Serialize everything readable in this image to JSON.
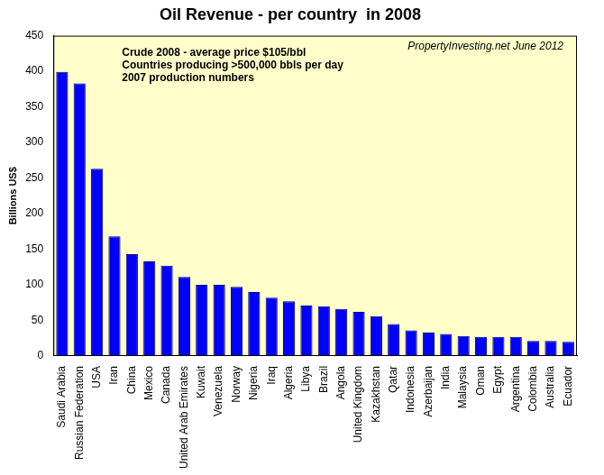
{
  "chart_data": {
    "type": "bar",
    "title": "Oil Revenue - per country  in 2008",
    "y_label": "Billions US$",
    "annotations": [
      "Crude 2008 - average price $105/bbl",
      "Countries producing >500,000 bbls per day",
      "2007 production numbers"
    ],
    "source": "PropertyInvesting.net June 2012",
    "categories": [
      "Saudi Arabia",
      "Russian Federation",
      "USA",
      "Iran",
      "China",
      "Mexico",
      "Canada",
      "United Arab Emirates",
      "Kuwait",
      "Venezuela",
      "Norway",
      "Nigeria",
      "Iraq",
      "Algeria",
      "Libya",
      "Brazil",
      "Angola",
      "United Kingdom",
      "Kazakhstan",
      "Qatar",
      "Indonesia",
      "Azerbaijan",
      "India",
      "Malaysia",
      "Oman",
      "Egypt",
      "Argentina",
      "Colombia",
      "Australia",
      "Ecuador"
    ],
    "values": [
      399,
      383,
      263,
      168,
      143,
      133,
      127,
      111,
      100,
      100,
      97,
      90,
      82,
      77,
      71,
      70,
      66,
      62,
      56,
      45,
      36,
      33,
      31,
      28,
      27,
      27,
      27,
      21,
      21,
      20
    ],
    "color": "#0000ff",
    "ylim": [
      0,
      450
    ],
    "yticks": [
      0,
      50,
      100,
      150,
      200,
      250,
      300,
      350,
      400,
      450
    ],
    "grid": false
  }
}
